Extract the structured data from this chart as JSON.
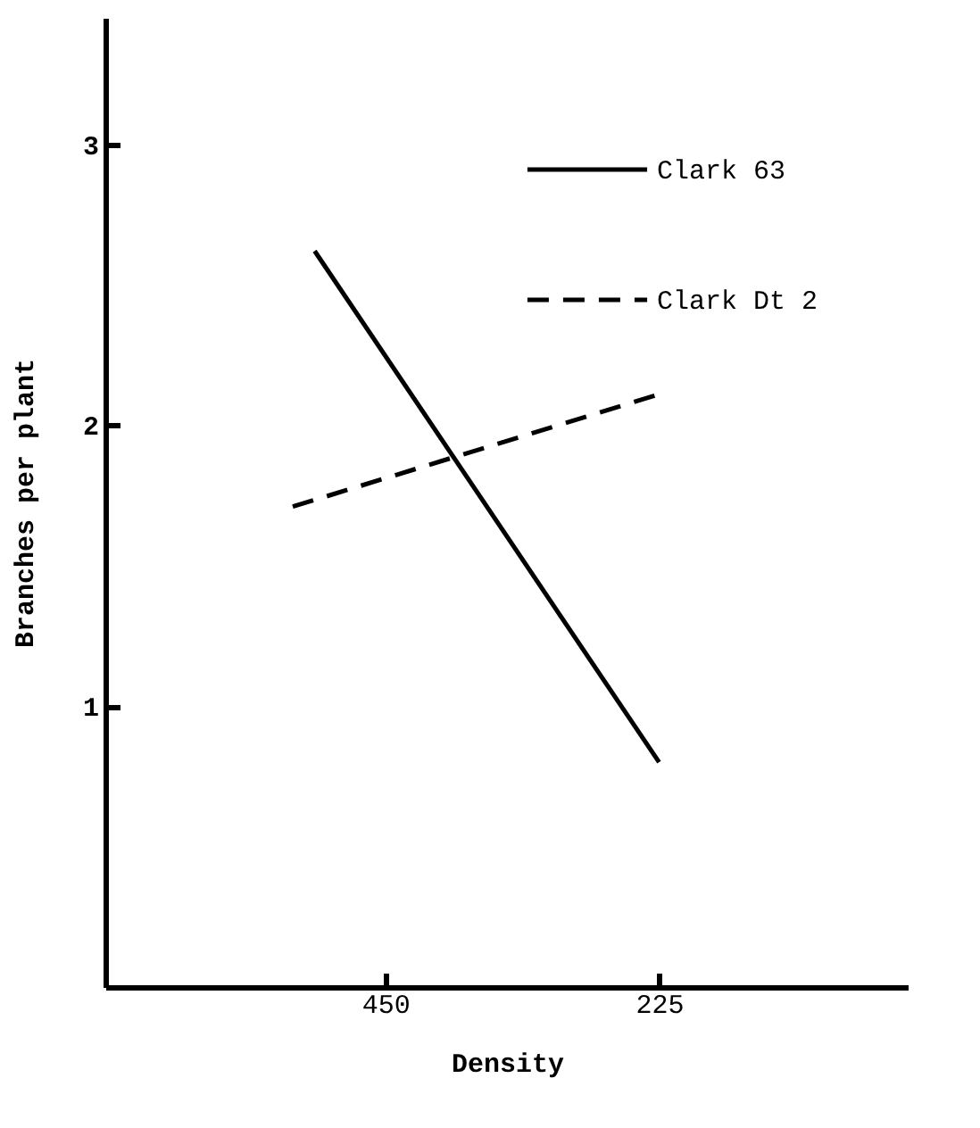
{
  "chart_data": {
    "type": "line",
    "xlabel": "Density",
    "ylabel": "Branches per plant",
    "xlim": [
      680,
      20
    ],
    "xticks": [
      450,
      225
    ],
    "ylim": [
      0,
      3.45
    ],
    "yticks": [
      1,
      2,
      3
    ],
    "grid": false,
    "legend": "top right",
    "series": [
      {
        "name": "Clark 63",
        "color": "#000000",
        "line_style": "solid",
        "x": [
          508,
          225
        ],
        "values": [
          2.62,
          0.8
        ]
      },
      {
        "name": "Clark Dt 2",
        "color": "#000000",
        "line_style": "dashed",
        "x": [
          526,
          225
        ],
        "values": [
          1.71,
          2.11
        ]
      }
    ]
  }
}
